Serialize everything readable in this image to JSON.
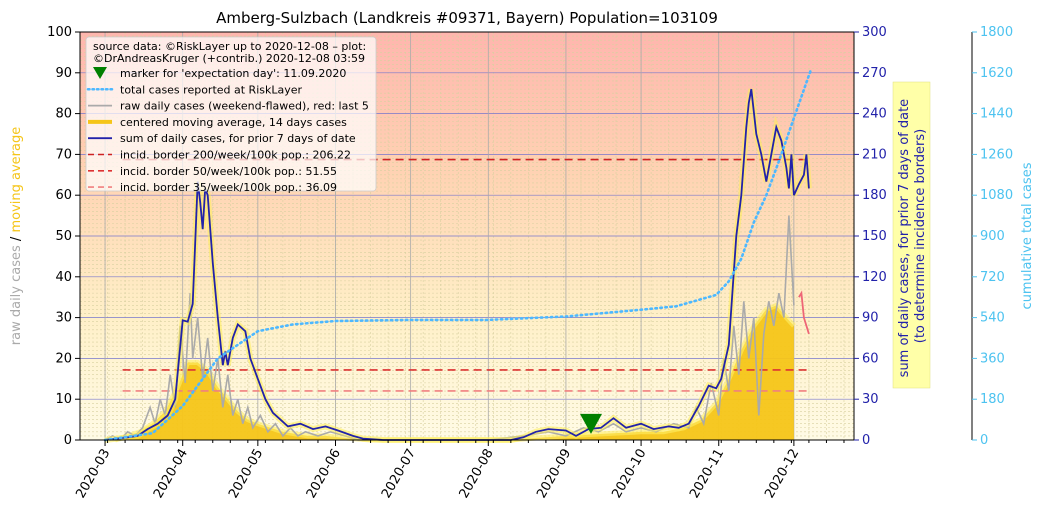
{
  "chart_data": {
    "type": "line",
    "title": "Amberg-Sulzbach (Landkreis #09371, Bayern) Population=103109",
    "x_axis": {
      "type": "date",
      "range": [
        "2020-02-20",
        "2020-12-25"
      ],
      "tick_labels": [
        "2020-03",
        "2020-04",
        "2020-05",
        "2020-06",
        "2020-07",
        "2020-08",
        "2020-09",
        "2020-10",
        "2020-11",
        "2020-12"
      ],
      "tick_dates": [
        "2020-03-01",
        "2020-04-01",
        "2020-05-01",
        "2020-06-01",
        "2020-07-01",
        "2020-08-01",
        "2020-09-01",
        "2020-10-01",
        "2020-11-01",
        "2020-12-01"
      ]
    },
    "y_left": {
      "range": [
        0,
        100
      ],
      "ticks": [
        0,
        10,
        20,
        30,
        40,
        50,
        60,
        70,
        80,
        90,
        100
      ],
      "label_parts": [
        "raw daily cases",
        "/",
        "moving average"
      ],
      "label_colors": [
        "#aaaaaa",
        "#000000",
        "#f5c518"
      ]
    },
    "y_right1": {
      "range": [
        0,
        300
      ],
      "ticks": [
        0,
        30,
        60,
        90,
        120,
        150,
        180,
        210,
        240,
        270,
        300
      ],
      "label_lines": [
        "sum of daily cases, for prior 7 days of date",
        "(to determine incidence borders)"
      ],
      "color": "#2222aa"
    },
    "y_right2": {
      "range": [
        0,
        1800
      ],
      "ticks": [
        0,
        180,
        360,
        540,
        720,
        900,
        1080,
        1260,
        1440,
        1620,
        1800
      ],
      "label": "cumulative total cases",
      "color": "#4dc3f0"
    },
    "legend": {
      "position": "top-left",
      "header_lines": [
        "source data: ©RiskLayer up to 2020-12-08 – plot:",
        "©DrAndreasKruger (+contrib.) 2020-12-08 03:59"
      ],
      "entries": [
        {
          "label": "marker for 'expectation day': 11.09.2020",
          "style": "triangle",
          "color": "#008000"
        },
        {
          "label": "total cases reported at RiskLayer",
          "style": "dotted",
          "color": "#4db8ff"
        },
        {
          "label": "raw daily cases (weekend-flawed), red: last 5",
          "style": "line",
          "color": "#aaaaaa"
        },
        {
          "label": "centered moving average, 14 days cases",
          "style": "thick",
          "color": "#f5c518"
        },
        {
          "label": "sum of daily cases, for prior 7 days of date",
          "style": "line",
          "color": "#2222aa"
        },
        {
          "label": "incid. border 200/week/100k pop.: 206.22",
          "style": "dashed",
          "color": "#cc2222"
        },
        {
          "label": "incid. border 50/week/100k pop.: 51.55",
          "style": "dashed",
          "color": "#dd3333"
        },
        {
          "label": "incid. border 35/week/100k pop.: 36.09",
          "style": "dashed",
          "color": "#f08080"
        }
      ]
    },
    "expectation_marker": {
      "date": "2020-09-11",
      "y": 2
    },
    "incidence_borders": [
      {
        "value_right1": 206.22,
        "start": "2020-03-08",
        "end": "2020-12-08",
        "color": "#cc2222"
      },
      {
        "value_right1": 51.55,
        "start": "2020-03-08",
        "end": "2020-12-08",
        "color": "#dd3333"
      },
      {
        "value_right1": 36.09,
        "start": "2020-03-08",
        "end": "2020-12-08",
        "color": "#f08080"
      }
    ],
    "series": {
      "raw_daily": [
        [
          "2020-03-01",
          0
        ],
        [
          "2020-03-04",
          1
        ],
        [
          "2020-03-07",
          0
        ],
        [
          "2020-03-10",
          2
        ],
        [
          "2020-03-13",
          1
        ],
        [
          "2020-03-16",
          3
        ],
        [
          "2020-03-19",
          8
        ],
        [
          "2020-03-21",
          4
        ],
        [
          "2020-03-23",
          10
        ],
        [
          "2020-03-25",
          6
        ],
        [
          "2020-03-27",
          16
        ],
        [
          "2020-03-29",
          8
        ],
        [
          "2020-03-31",
          28
        ],
        [
          "2020-04-02",
          14
        ],
        [
          "2020-04-04",
          36
        ],
        [
          "2020-04-05",
          20
        ],
        [
          "2020-04-07",
          30
        ],
        [
          "2020-04-09",
          15
        ],
        [
          "2020-04-11",
          25
        ],
        [
          "2020-04-13",
          12
        ],
        [
          "2020-04-15",
          20
        ],
        [
          "2020-04-17",
          8
        ],
        [
          "2020-04-19",
          16
        ],
        [
          "2020-04-21",
          6
        ],
        [
          "2020-04-23",
          10
        ],
        [
          "2020-04-25",
          4
        ],
        [
          "2020-04-27",
          8
        ],
        [
          "2020-04-29",
          3
        ],
        [
          "2020-05-02",
          6
        ],
        [
          "2020-05-05",
          2
        ],
        [
          "2020-05-08",
          4
        ],
        [
          "2020-05-11",
          1
        ],
        [
          "2020-05-14",
          3
        ],
        [
          "2020-05-17",
          1
        ],
        [
          "2020-05-20",
          2
        ],
        [
          "2020-05-25",
          1
        ],
        [
          "2020-05-30",
          2
        ],
        [
          "2020-06-05",
          1
        ],
        [
          "2020-06-10",
          0
        ],
        [
          "2020-06-20",
          0
        ],
        [
          "2020-07-10",
          0
        ],
        [
          "2020-08-01",
          0
        ],
        [
          "2020-08-15",
          1
        ],
        [
          "2020-08-25",
          2
        ],
        [
          "2020-09-01",
          1
        ],
        [
          "2020-09-08",
          3
        ],
        [
          "2020-09-14",
          2
        ],
        [
          "2020-09-20",
          4
        ],
        [
          "2020-09-25",
          2
        ],
        [
          "2020-10-01",
          3
        ],
        [
          "2020-10-07",
          2
        ],
        [
          "2020-10-14",
          4
        ],
        [
          "2020-10-20",
          3
        ],
        [
          "2020-10-23",
          8
        ],
        [
          "2020-10-26",
          4
        ],
        [
          "2020-10-29",
          14
        ],
        [
          "2020-11-01",
          6
        ],
        [
          "2020-11-03",
          20
        ],
        [
          "2020-11-05",
          12
        ],
        [
          "2020-11-07",
          28
        ],
        [
          "2020-11-09",
          16
        ],
        [
          "2020-11-11",
          34
        ],
        [
          "2020-11-13",
          20
        ],
        [
          "2020-11-15",
          30
        ],
        [
          "2020-11-17",
          6
        ],
        [
          "2020-11-19",
          26
        ],
        [
          "2020-11-21",
          34
        ],
        [
          "2020-11-23",
          28
        ],
        [
          "2020-11-25",
          36
        ],
        [
          "2020-11-27",
          30
        ],
        [
          "2020-11-29",
          55
        ],
        [
          "2020-12-01",
          33
        ]
      ],
      "raw_daily_last5": [
        [
          "2020-12-03",
          35
        ],
        [
          "2020-12-04",
          36
        ],
        [
          "2020-12-05",
          30
        ],
        [
          "2020-12-06",
          28
        ],
        [
          "2020-12-07",
          26
        ]
      ],
      "moving_average_14d": [
        [
          "2020-03-05",
          0
        ],
        [
          "2020-03-10",
          1
        ],
        [
          "2020-03-15",
          2
        ],
        [
          "2020-03-20",
          4
        ],
        [
          "2020-03-25",
          7
        ],
        [
          "2020-03-30",
          13
        ],
        [
          "2020-04-03",
          19
        ],
        [
          "2020-04-07",
          19
        ],
        [
          "2020-04-11",
          17
        ],
        [
          "2020-04-15",
          13
        ],
        [
          "2020-04-19",
          10
        ],
        [
          "2020-04-23",
          7
        ],
        [
          "2020-04-27",
          5
        ],
        [
          "2020-05-01",
          4
        ],
        [
          "2020-05-06",
          3
        ],
        [
          "2020-05-11",
          2
        ],
        [
          "2020-05-16",
          1.5
        ],
        [
          "2020-05-21",
          1
        ],
        [
          "2020-05-28",
          1
        ],
        [
          "2020-06-05",
          0.5
        ],
        [
          "2020-06-15",
          0
        ],
        [
          "2020-07-15",
          0
        ],
        [
          "2020-08-10",
          0
        ],
        [
          "2020-08-20",
          0.5
        ],
        [
          "2020-09-01",
          1
        ],
        [
          "2020-09-15",
          1.5
        ],
        [
          "2020-10-01",
          2
        ],
        [
          "2020-10-10",
          2
        ],
        [
          "2020-10-18",
          3
        ],
        [
          "2020-10-25",
          5
        ],
        [
          "2020-10-31",
          9
        ],
        [
          "2020-11-05",
          15
        ],
        [
          "2020-11-10",
          22
        ],
        [
          "2020-11-15",
          28
        ],
        [
          "2020-11-20",
          32
        ],
        [
          "2020-11-24",
          33
        ],
        [
          "2020-11-28",
          30
        ],
        [
          "2020-12-01",
          28
        ]
      ],
      "sum_7day_right1": [
        [
          "2020-03-01",
          0
        ],
        [
          "2020-03-10",
          2
        ],
        [
          "2020-03-14",
          3
        ],
        [
          "2020-03-18",
          8
        ],
        [
          "2020-03-22",
          12
        ],
        [
          "2020-03-26",
          18
        ],
        [
          "2020-03-29",
          30
        ],
        [
          "2020-04-01",
          88
        ],
        [
          "2020-04-03",
          87
        ],
        [
          "2020-04-05",
          100
        ],
        [
          "2020-04-07",
          190
        ],
        [
          "2020-04-08",
          175
        ],
        [
          "2020-04-09",
          155
        ],
        [
          "2020-04-10",
          185
        ],
        [
          "2020-04-11",
          180
        ],
        [
          "2020-04-13",
          130
        ],
        [
          "2020-04-15",
          90
        ],
        [
          "2020-04-17",
          55
        ],
        [
          "2020-04-18",
          65
        ],
        [
          "2020-04-19",
          55
        ],
        [
          "2020-04-21",
          75
        ],
        [
          "2020-04-23",
          85
        ],
        [
          "2020-04-26",
          80
        ],
        [
          "2020-04-28",
          60
        ],
        [
          "2020-05-01",
          45
        ],
        [
          "2020-05-04",
          30
        ],
        [
          "2020-05-07",
          20
        ],
        [
          "2020-05-10",
          15
        ],
        [
          "2020-05-13",
          10
        ],
        [
          "2020-05-18",
          12
        ],
        [
          "2020-05-23",
          8
        ],
        [
          "2020-05-28",
          10
        ],
        [
          "2020-06-02",
          7
        ],
        [
          "2020-06-08",
          3
        ],
        [
          "2020-06-12",
          1
        ],
        [
          "2020-06-20",
          0
        ],
        [
          "2020-07-15",
          0
        ],
        [
          "2020-08-10",
          0
        ],
        [
          "2020-08-15",
          2
        ],
        [
          "2020-08-20",
          6
        ],
        [
          "2020-08-25",
          8
        ],
        [
          "2020-09-01",
          7
        ],
        [
          "2020-09-05",
          3
        ],
        [
          "2020-09-10",
          8
        ],
        [
          "2020-09-15",
          9
        ],
        [
          "2020-09-20",
          16
        ],
        [
          "2020-09-25",
          9
        ],
        [
          "2020-10-01",
          12
        ],
        [
          "2020-10-06",
          8
        ],
        [
          "2020-10-12",
          10
        ],
        [
          "2020-10-16",
          9
        ],
        [
          "2020-10-20",
          12
        ],
        [
          "2020-10-24",
          25
        ],
        [
          "2020-10-28",
          40
        ],
        [
          "2020-10-31",
          38
        ],
        [
          "2020-11-02",
          45
        ],
        [
          "2020-11-05",
          70
        ],
        [
          "2020-11-08",
          150
        ],
        [
          "2020-11-10",
          180
        ],
        [
          "2020-11-12",
          230
        ],
        [
          "2020-11-13",
          248
        ],
        [
          "2020-11-14",
          258
        ],
        [
          "2020-11-16",
          225
        ],
        [
          "2020-11-18",
          210
        ],
        [
          "2020-11-20",
          190
        ],
        [
          "2020-11-22",
          210
        ],
        [
          "2020-11-24",
          230
        ],
        [
          "2020-11-26",
          220
        ],
        [
          "2020-11-28",
          200
        ],
        [
          "2020-11-29",
          185
        ],
        [
          "2020-11-30",
          210
        ],
        [
          "2020-12-01",
          180
        ],
        [
          "2020-12-03",
          188
        ],
        [
          "2020-12-05",
          195
        ],
        [
          "2020-12-06",
          210
        ],
        [
          "2020-12-07",
          185
        ]
      ],
      "cumulative_right2": [
        [
          "2020-03-01",
          0
        ],
        [
          "2020-03-20",
          30
        ],
        [
          "2020-04-01",
          150
        ],
        [
          "2020-04-15",
          360
        ],
        [
          "2020-05-01",
          480
        ],
        [
          "2020-05-15",
          510
        ],
        [
          "2020-06-01",
          525
        ],
        [
          "2020-07-01",
          530
        ],
        [
          "2020-08-01",
          530
        ],
        [
          "2020-09-01",
          545
        ],
        [
          "2020-10-01",
          575
        ],
        [
          "2020-10-15",
          590
        ],
        [
          "2020-10-31",
          640
        ],
        [
          "2020-11-05",
          700
        ],
        [
          "2020-11-10",
          800
        ],
        [
          "2020-11-15",
          960
        ],
        [
          "2020-11-20",
          1080
        ],
        [
          "2020-11-25",
          1230
        ],
        [
          "2020-12-01",
          1420
        ],
        [
          "2020-12-08",
          1640
        ]
      ]
    }
  }
}
